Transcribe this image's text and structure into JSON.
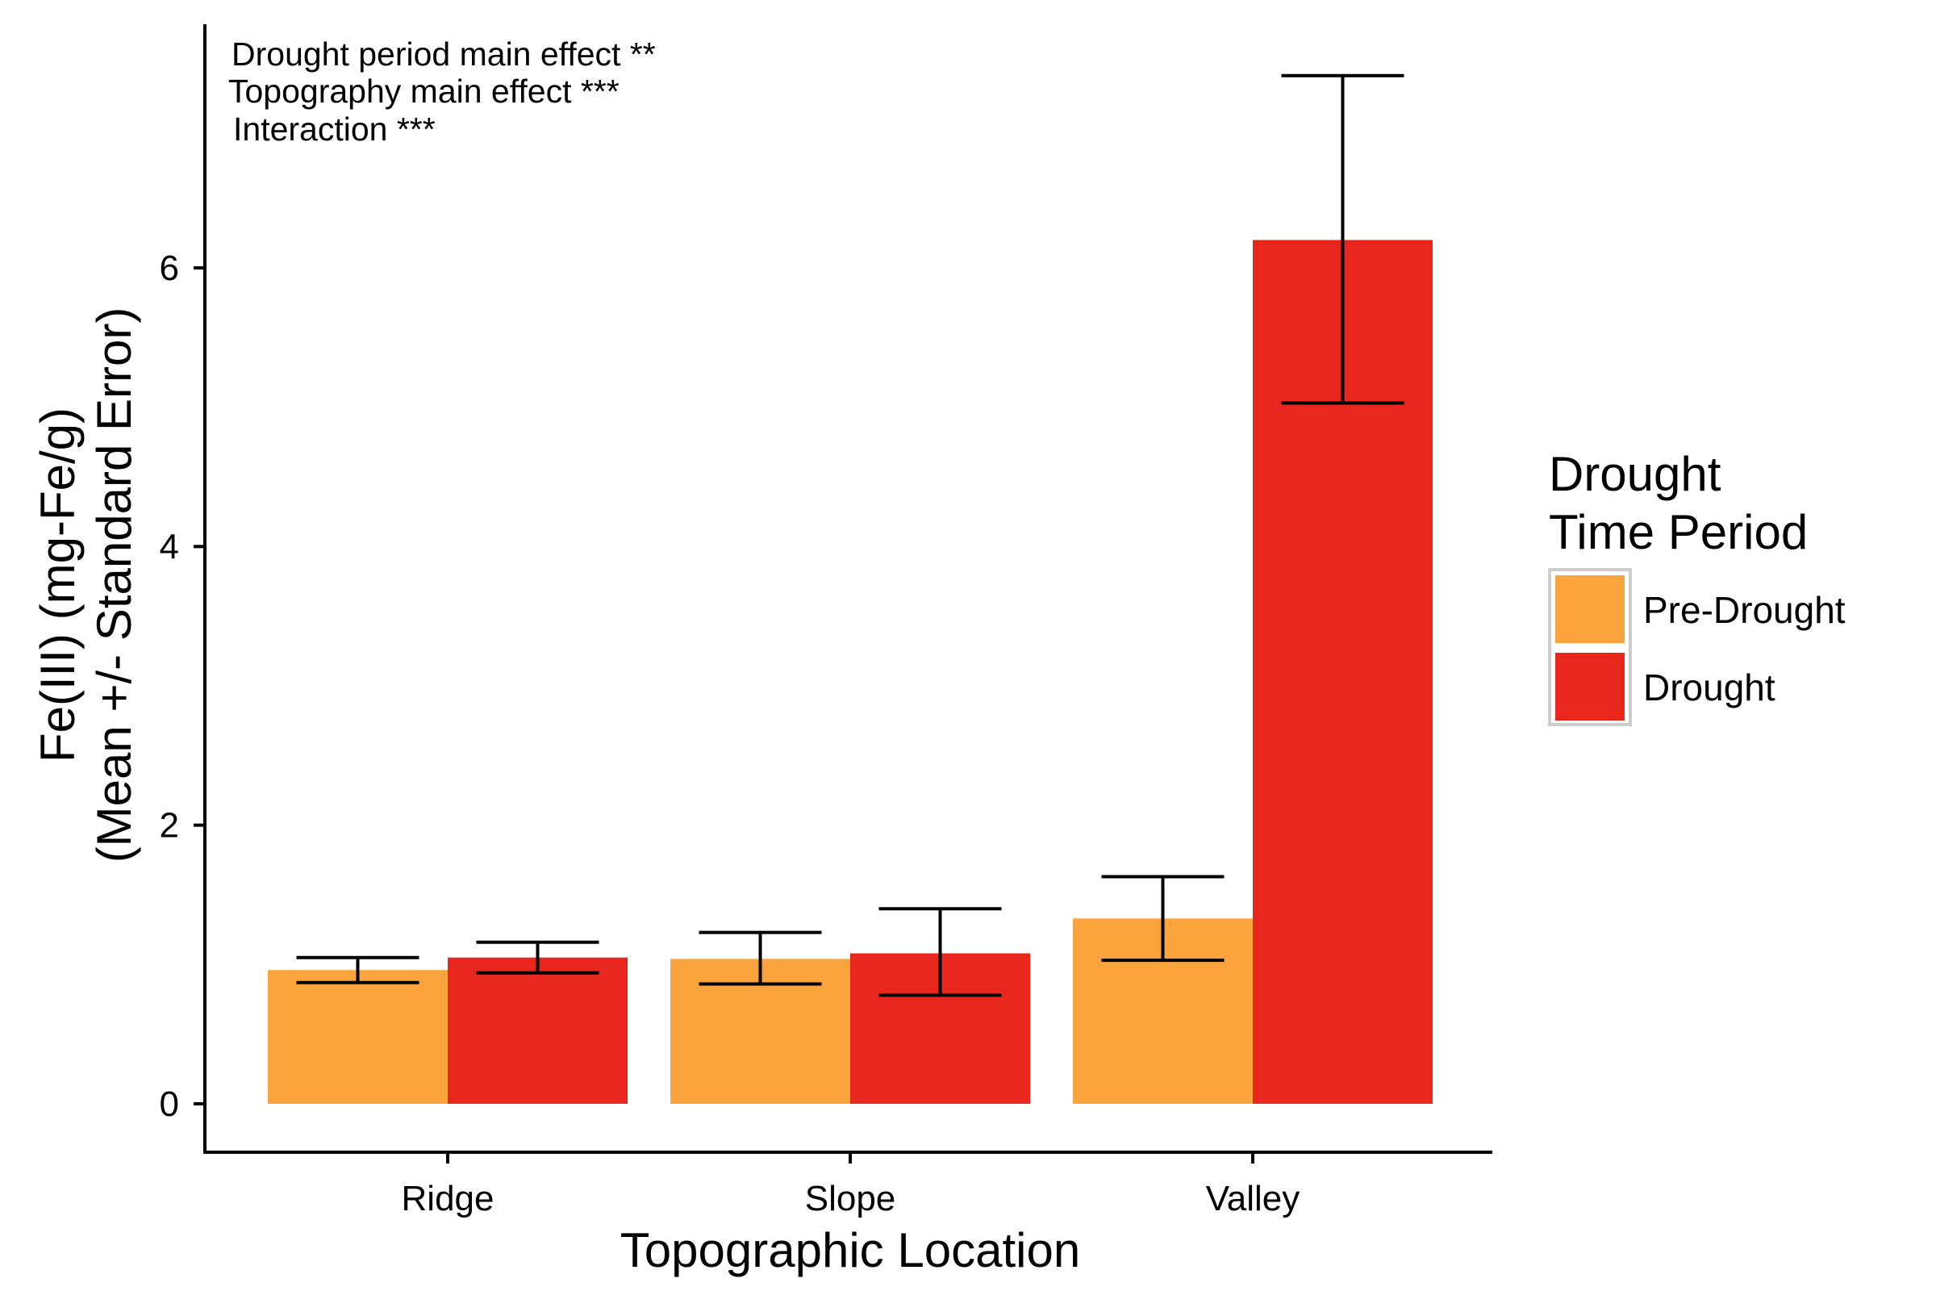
{
  "chart_data": {
    "type": "bar",
    "categories": [
      "Ridge",
      "Slope",
      "Valley"
    ],
    "series": [
      {
        "name": "Pre-Drought",
        "color": "#FBA33C",
        "values": [
          0.96,
          1.04,
          1.33
        ],
        "error_low": [
          0.87,
          0.86,
          1.03
        ],
        "error_high": [
          1.05,
          1.23,
          1.63
        ]
      },
      {
        "name": "Drought",
        "color": "#E8261E",
        "values": [
          1.05,
          1.08,
          6.2
        ],
        "error_low": [
          0.94,
          0.78,
          5.03
        ],
        "error_high": [
          1.16,
          1.4,
          7.38
        ]
      }
    ],
    "xlabel": "Topographic Location",
    "ylabel_lines": [
      "Fe(III) (mg-Fe/g)",
      "(Mean +/- Standard Error)"
    ],
    "yticks": [
      0,
      2,
      4,
      6
    ],
    "ylim": [
      -0.35,
      7.75
    ],
    "annotations": [
      "Drought period main effect  **",
      "Topography main effect  ***",
      "Interaction  ***"
    ],
    "legend": {
      "title_lines": [
        "Drought",
        "Time Period"
      ],
      "position": "right"
    },
    "grid": false
  }
}
